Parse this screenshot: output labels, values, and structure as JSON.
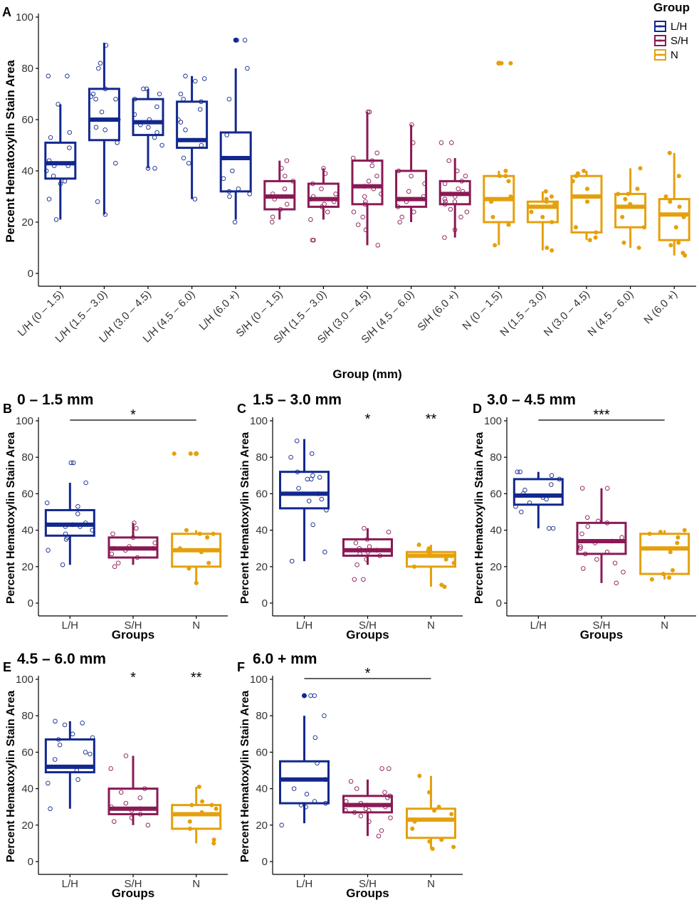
{
  "colors": {
    "L/H": "#12288e",
    "S/H": "#8a1a55",
    "N": "#e5a00d"
  },
  "legend": {
    "title": "Group",
    "entries": [
      "L/H",
      "S/H",
      "N"
    ]
  },
  "chart_data": [
    {
      "panel": "A",
      "type": "box",
      "title": "",
      "xlabel": "Group (mm)",
      "ylabel": "Percent Hematoxylin Stain Area",
      "ylim": [
        0,
        100
      ],
      "yticks": [
        0,
        20,
        40,
        60,
        80,
        100
      ],
      "categories": [
        "L/H (0 – 1.5)",
        "L/H (1.5 – 3.0)",
        "L/H (3.0 – 4.5)",
        "L/H (4.5 – 6.0)",
        "L/H (6.0 +)",
        "S/H (0 – 1.5)",
        "S/H (1.5 – 3.0)",
        "S/H (3.0 – 4.5)",
        "S/H (4.5 – 6.0)",
        "S/H (6.0 +)",
        "N (0 – 1.5)",
        "N (1.5 – 3.0)",
        "N (3.0 – 4.5)",
        "N (4.5 – 6.0)",
        "N (6.0 +)"
      ],
      "groups": [
        "L/H",
        "L/H",
        "L/H",
        "L/H",
        "L/H",
        "S/H",
        "S/H",
        "S/H",
        "S/H",
        "S/H",
        "N",
        "N",
        "N",
        "N",
        "N"
      ],
      "boxes": [
        {
          "min": 21,
          "q1": 37,
          "median": 43,
          "q3": 51,
          "max": 66
        },
        {
          "min": 23,
          "q1": 52,
          "median": 60,
          "q3": 72,
          "max": 90
        },
        {
          "min": 41,
          "q1": 54,
          "median": 59,
          "q3": 68,
          "max": 72
        },
        {
          "min": 29,
          "q1": 49,
          "median": 52,
          "q3": 67,
          "max": 77
        },
        {
          "min": 21,
          "q1": 32,
          "median": 45,
          "q3": 55,
          "max": 80
        },
        {
          "min": 21,
          "q1": 25,
          "median": 30,
          "q3": 36,
          "max": 44
        },
        {
          "min": 21,
          "q1": 26,
          "median": 29,
          "q3": 35,
          "max": 41
        },
        {
          "min": 11,
          "q1": 27,
          "median": 34,
          "q3": 44,
          "max": 63
        },
        {
          "min": 20,
          "q1": 26,
          "median": 29,
          "q3": 40,
          "max": 58
        },
        {
          "min": 14,
          "q1": 27,
          "median": 31,
          "q3": 36,
          "max": 45
        },
        {
          "min": 11,
          "q1": 20,
          "median": 29,
          "q3": 38,
          "max": 40
        },
        {
          "min": 9,
          "q1": 20,
          "median": 26,
          "q3": 28,
          "max": 32
        },
        {
          "min": 13,
          "q1": 16,
          "median": 30,
          "q3": 38,
          "max": 40
        },
        {
          "min": 10,
          "q1": 18,
          "median": 26,
          "q3": 31,
          "max": 41
        },
        {
          "min": 7,
          "q1": 13,
          "median": 23,
          "q3": 29,
          "max": 47
        }
      ],
      "outliers": [
        [],
        [],
        [],
        [],
        [
          91
        ],
        [],
        [],
        [],
        [],
        [],
        [
          82
        ],
        [],
        [],
        [],
        []
      ],
      "points": [
        [
          77,
          77,
          66,
          55,
          53,
          49,
          44,
          43,
          42,
          42,
          40,
          38,
          36,
          35,
          29,
          21
        ],
        [
          89,
          82,
          80,
          72,
          70,
          69,
          68,
          68,
          63,
          60,
          57,
          56,
          51,
          43,
          28,
          23
        ],
        [
          72,
          72,
          70,
          68,
          65,
          62,
          60,
          58,
          57,
          55,
          53,
          50,
          41,
          41
        ],
        [
          77,
          76,
          75,
          70,
          68,
          67,
          64,
          60,
          59,
          56,
          50,
          45,
          43,
          29
        ],
        [
          91,
          91,
          80,
          68,
          54,
          45,
          40,
          37,
          33,
          32,
          31,
          30,
          20
        ],
        [
          44,
          41,
          38,
          36,
          33,
          31,
          30,
          30,
          29,
          27,
          25,
          22,
          20
        ],
        [
          41,
          39,
          35,
          33,
          31,
          30,
          29,
          28,
          27,
          26,
          24,
          21,
          13,
          13
        ],
        [
          63,
          63,
          47,
          45,
          44,
          42,
          38,
          36,
          34,
          33,
          31,
          30,
          28,
          27,
          24,
          22,
          19,
          17,
          11
        ],
        [
          58,
          51,
          40,
          38,
          35,
          32,
          30,
          29,
          28,
          26,
          24,
          22,
          20
        ],
        [
          51,
          51,
          44,
          40,
          38,
          36,
          35,
          33,
          32,
          31,
          30,
          29,
          28,
          28,
          27,
          25,
          24,
          22,
          17,
          14
        ],
        [
          82,
          82,
          40,
          38,
          38,
          36,
          30,
          28,
          22,
          19,
          11
        ],
        [
          32,
          30,
          29,
          28,
          27,
          26,
          24,
          22,
          20,
          10,
          9
        ],
        [
          40,
          39,
          38,
          36,
          33,
          30,
          28,
          18,
          16,
          14,
          13
        ],
        [
          41,
          33,
          31,
          31,
          29,
          27,
          26,
          22,
          18,
          12,
          10
        ],
        [
          47,
          38,
          30,
          28,
          26,
          22,
          18,
          12,
          11,
          8,
          7
        ]
      ],
      "annotations": []
    },
    {
      "panel": "B",
      "type": "box",
      "title": "0 – 1.5 mm",
      "xlabel": "Groups",
      "ylabel": "Percent Hematoxylin Stain Area",
      "ylim": [
        0,
        100
      ],
      "yticks": [
        0,
        20,
        40,
        60,
        80,
        100
      ],
      "categories": [
        "L/H",
        "S/H",
        "N"
      ],
      "groups": [
        "L/H",
        "S/H",
        "N"
      ],
      "boxes": [
        {
          "min": 21,
          "q1": 37,
          "median": 43,
          "q3": 51,
          "max": 66
        },
        {
          "min": 21,
          "q1": 25,
          "median": 30,
          "q3": 36,
          "max": 44
        },
        {
          "min": 11,
          "q1": 20,
          "median": 29,
          "q3": 38,
          "max": 40
        }
      ],
      "outliers": [
        [],
        [],
        [
          82
        ]
      ],
      "points": [
        [
          77,
          77,
          66,
          55,
          53,
          49,
          44,
          43,
          42,
          42,
          40,
          38,
          36,
          35,
          29,
          21
        ],
        [
          44,
          41,
          38,
          36,
          33,
          31,
          30,
          30,
          29,
          27,
          25,
          22,
          20
        ],
        [
          82,
          82,
          40,
          38,
          38,
          36,
          30,
          28,
          22,
          19,
          11
        ]
      ],
      "annotations": [
        {
          "label": "*",
          "bracket": [
            0,
            2
          ]
        }
      ]
    },
    {
      "panel": "C",
      "type": "box",
      "title": "1.5 – 3.0 mm",
      "xlabel": "Groups",
      "ylabel": "Percent Hematoxylin Stain Area",
      "ylim": [
        0,
        100
      ],
      "yticks": [
        0,
        20,
        40,
        60,
        80,
        100
      ],
      "categories": [
        "L/H",
        "S/H",
        "N"
      ],
      "groups": [
        "L/H",
        "S/H",
        "N"
      ],
      "boxes": [
        {
          "min": 23,
          "q1": 52,
          "median": 60,
          "q3": 72,
          "max": 90
        },
        {
          "min": 21,
          "q1": 26,
          "median": 29,
          "q3": 35,
          "max": 41
        },
        {
          "min": 9,
          "q1": 20,
          "median": 26,
          "q3": 28,
          "max": 32
        }
      ],
      "outliers": [
        [],
        [],
        []
      ],
      "points": [
        [
          89,
          82,
          80,
          72,
          70,
          69,
          68,
          68,
          63,
          60,
          57,
          56,
          51,
          43,
          28,
          23
        ],
        [
          41,
          39,
          35,
          33,
          31,
          30,
          29,
          28,
          27,
          26,
          24,
          21,
          13,
          13
        ],
        [
          32,
          30,
          29,
          28,
          27,
          26,
          24,
          22,
          20,
          10,
          9
        ]
      ],
      "annotations": [
        {
          "label": "*",
          "at": 1
        },
        {
          "label": "**",
          "at": 2
        }
      ]
    },
    {
      "panel": "D",
      "type": "box",
      "title": "3.0 – 4.5 mm",
      "xlabel": "Groups",
      "ylabel": "Percent Hematoxylin Stain Area",
      "ylim": [
        0,
        100
      ],
      "yticks": [
        0,
        20,
        40,
        60,
        80,
        100
      ],
      "categories": [
        "L/H",
        "S/H",
        "N"
      ],
      "groups": [
        "L/H",
        "S/H",
        "N"
      ],
      "boxes": [
        {
          "min": 41,
          "q1": 54,
          "median": 59,
          "q3": 68,
          "max": 72
        },
        {
          "min": 11,
          "q1": 27,
          "median": 34,
          "q3": 44,
          "max": 63
        },
        {
          "min": 13,
          "q1": 16,
          "median": 30,
          "q3": 38,
          "max": 40
        }
      ],
      "outliers": [
        [],
        [],
        []
      ],
      "points": [
        [
          72,
          72,
          70,
          68,
          65,
          62,
          60,
          58,
          57,
          55,
          53,
          50,
          41,
          41
        ],
        [
          63,
          63,
          47,
          45,
          44,
          42,
          38,
          36,
          34,
          33,
          31,
          30,
          28,
          27,
          24,
          22,
          19,
          17,
          11
        ],
        [
          40,
          39,
          38,
          36,
          33,
          30,
          28,
          18,
          16,
          14,
          13
        ]
      ],
      "annotations": [
        {
          "label": "***",
          "bracket": [
            0,
            2
          ]
        }
      ]
    },
    {
      "panel": "E",
      "type": "box",
      "title": "4.5 – 6.0 mm",
      "xlabel": "Groups",
      "ylabel": "Percent Hematoxylin Stain Area",
      "ylim": [
        0,
        100
      ],
      "yticks": [
        0,
        20,
        40,
        60,
        80,
        100
      ],
      "categories": [
        "L/H",
        "S/H",
        "N"
      ],
      "groups": [
        "L/H",
        "S/H",
        "N"
      ],
      "boxes": [
        {
          "min": 29,
          "q1": 49,
          "median": 52,
          "q3": 67,
          "max": 77
        },
        {
          "min": 20,
          "q1": 26,
          "median": 29,
          "q3": 40,
          "max": 58
        },
        {
          "min": 10,
          "q1": 18,
          "median": 26,
          "q3": 31,
          "max": 41
        }
      ],
      "outliers": [
        [],
        [],
        []
      ],
      "points": [
        [
          77,
          76,
          75,
          70,
          68,
          67,
          64,
          60,
          59,
          56,
          50,
          45,
          43,
          29
        ],
        [
          58,
          51,
          40,
          38,
          35,
          32,
          30,
          29,
          28,
          26,
          24,
          22,
          20
        ],
        [
          41,
          33,
          31,
          31,
          29,
          27,
          26,
          22,
          18,
          12,
          10
        ]
      ],
      "annotations": [
        {
          "label": "*",
          "at": 1
        },
        {
          "label": "**",
          "at": 2
        }
      ]
    },
    {
      "panel": "F",
      "type": "box",
      "title": "6.0 + mm",
      "xlabel": "Groups",
      "ylabel": "Percent Hematoxylin Stain Area",
      "ylim": [
        0,
        100
      ],
      "yticks": [
        0,
        20,
        40,
        60,
        80,
        100
      ],
      "categories": [
        "L/H",
        "S/H",
        "N"
      ],
      "groups": [
        "L/H",
        "S/H",
        "N"
      ],
      "boxes": [
        {
          "min": 21,
          "q1": 32,
          "median": 45,
          "q3": 55,
          "max": 80
        },
        {
          "min": 14,
          "q1": 27,
          "median": 31,
          "q3": 36,
          "max": 45
        },
        {
          "min": 7,
          "q1": 13,
          "median": 23,
          "q3": 29,
          "max": 47
        }
      ],
      "outliers": [
        [
          91
        ],
        [],
        []
      ],
      "points": [
        [
          91,
          91,
          80,
          68,
          54,
          45,
          40,
          37,
          33,
          32,
          31,
          30,
          20
        ],
        [
          51,
          51,
          44,
          40,
          38,
          36,
          35,
          33,
          32,
          31,
          30,
          29,
          28,
          28,
          27,
          25,
          24,
          22,
          17,
          14
        ],
        [
          47,
          38,
          30,
          28,
          26,
          22,
          18,
          12,
          11,
          8,
          7
        ]
      ],
      "annotations": [
        {
          "label": "*",
          "bracket": [
            0,
            2
          ]
        }
      ]
    }
  ]
}
